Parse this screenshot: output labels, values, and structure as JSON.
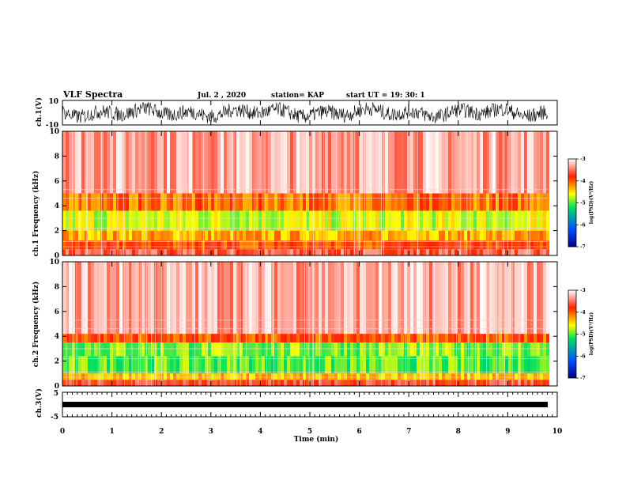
{
  "header": {
    "title": "VLF Spectra",
    "date": "Jul. 2 , 2020",
    "station": "station= KAP",
    "start": "start UT = 19: 30: 1"
  },
  "chart_data": [
    {
      "type": "line",
      "panel": "ch1-waveform",
      "ylabel": "ch.1(V)",
      "ylim": [
        -10,
        10
      ],
      "ytick_labels": [
        "10",
        "-10"
      ],
      "description_values": "noisy broadband signal spanning roughly -8 to 8 V over 0–9.8 min"
    },
    {
      "type": "heatmap",
      "panel": "ch1-spectrogram",
      "ylabel": "ch.1 Frequency (kHz)",
      "ylim": [
        0,
        10
      ],
      "xlim": [
        0,
        10
      ],
      "ytick_labels": [
        "0",
        "2",
        "4",
        "6",
        "8",
        "10"
      ],
      "bands_khz": [
        {
          "from": 0.0,
          "to": 0.5,
          "level": -3.6
        },
        {
          "from": 0.5,
          "to": 1.2,
          "level": -3.9
        },
        {
          "from": 1.2,
          "to": 2.0,
          "level": -4.3
        },
        {
          "from": 2.0,
          "to": 3.6,
          "level": -4.7
        },
        {
          "from": 3.6,
          "to": 5.0,
          "level": -4.1
        },
        {
          "from": 5.0,
          "to": 10.0,
          "level": -3.3
        }
      ]
    },
    {
      "type": "heatmap",
      "panel": "ch2-spectrogram",
      "ylabel": "ch.2 Frequency (kHz)",
      "ylim": [
        0,
        10
      ],
      "xlim": [
        0,
        10
      ],
      "ytick_labels": [
        "0",
        "2",
        "4",
        "6",
        "8",
        "10"
      ],
      "bands_khz": [
        {
          "from": 0.0,
          "to": 0.5,
          "level": -3.7
        },
        {
          "from": 0.5,
          "to": 1.0,
          "level": -4.4
        },
        {
          "from": 1.0,
          "to": 2.4,
          "level": -5.0
        },
        {
          "from": 2.4,
          "to": 3.5,
          "level": -4.9
        },
        {
          "from": 3.5,
          "to": 4.2,
          "level": -4.0
        },
        {
          "from": 4.2,
          "to": 10.0,
          "level": -3.3
        }
      ]
    },
    {
      "type": "line",
      "panel": "ch3-waveform",
      "ylabel": "ch.3(V)",
      "ylim": [
        -5,
        5
      ],
      "ytick_labels": [
        "5",
        "-5"
      ],
      "description_values": "dense signal near -1.5 V with small amplitude"
    }
  ],
  "colorbar": {
    "label": "log(PSD)(V²/Hz)",
    "range": [
      -7,
      -3
    ],
    "tick_labels": [
      "-3",
      "-4",
      "-5",
      "-6",
      "-7"
    ],
    "colors": [
      "#000080",
      "#0050ff",
      "#00e060",
      "#ffff00",
      "#ff2000",
      "#ffffff"
    ]
  },
  "xaxis": {
    "label": "Time (min)",
    "range": [
      0,
      10
    ],
    "tick_labels": [
      "0",
      "1",
      "2",
      "3",
      "4",
      "5",
      "6",
      "7",
      "8",
      "9",
      "10"
    ]
  }
}
